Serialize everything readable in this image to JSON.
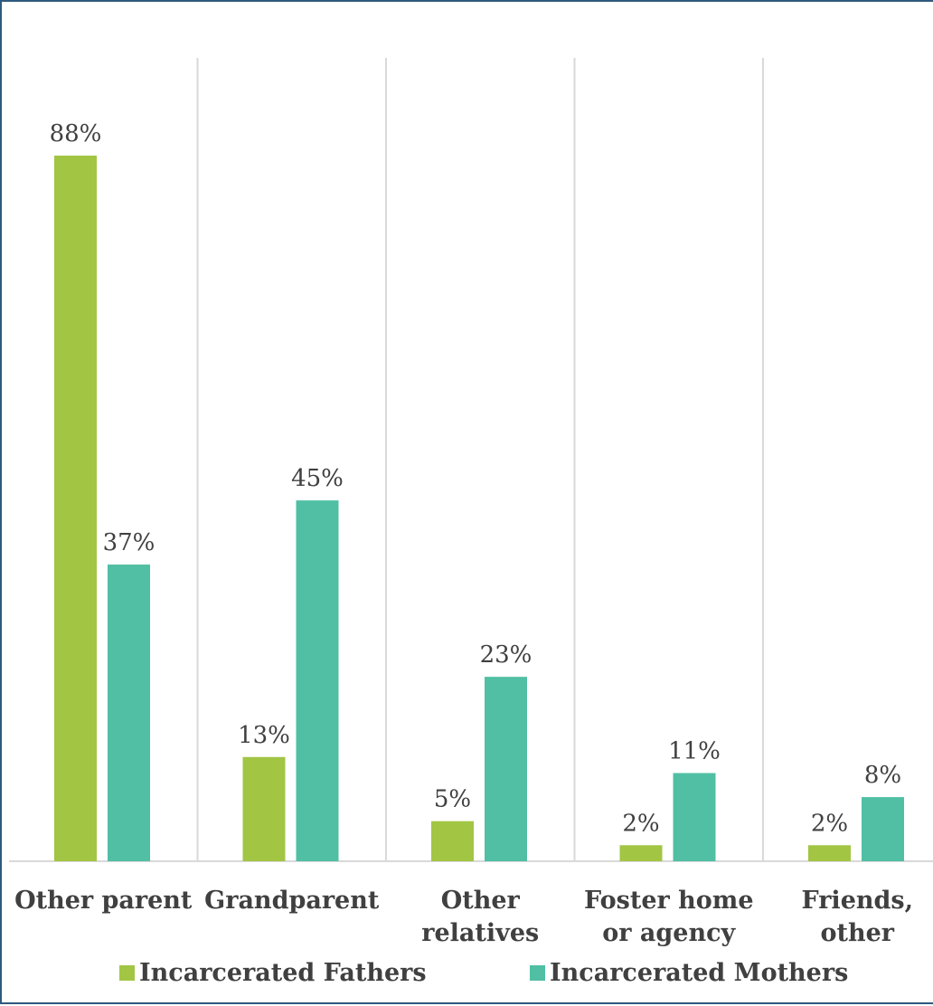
{
  "chart_data": {
    "type": "bar",
    "title": "",
    "xlabel": "",
    "ylabel": "",
    "ylim": [
      0,
      100
    ],
    "grid": "vertical separators between categories",
    "legend_placement": "bottom",
    "categories": [
      [
        "Other parent"
      ],
      [
        "Grandparent"
      ],
      [
        "Other",
        "relatives"
      ],
      [
        "Foster home",
        "or agency"
      ],
      [
        "Friends,",
        "other"
      ]
    ],
    "series": [
      {
        "name": "Incarcerated Fathers",
        "color": "#a2c544",
        "values": [
          88,
          13,
          5,
          2,
          2
        ],
        "labels": [
          "88%",
          "13%",
          "5%",
          "2%",
          "2%"
        ]
      },
      {
        "name": "Incarcerated Mothers",
        "color": "#50bfa4",
        "values": [
          37,
          45,
          23,
          11,
          8
        ],
        "labels": [
          "37%",
          "45%",
          "23%",
          "11%",
          "8%"
        ]
      }
    ]
  }
}
